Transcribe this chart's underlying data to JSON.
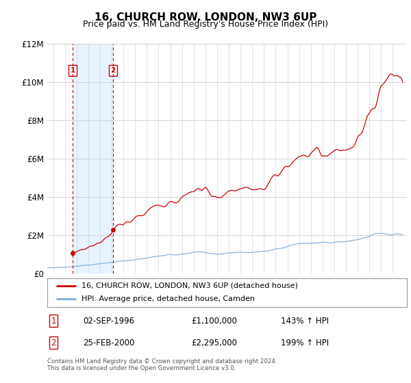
{
  "title": "16, CHURCH ROW, LONDON, NW3 6UP",
  "subtitle": "Price paid vs. HM Land Registry's House Price Index (HPI)",
  "ylim": [
    0,
    12000000
  ],
  "yticks": [
    0,
    2000000,
    4000000,
    6000000,
    8000000,
    10000000,
    12000000
  ],
  "ytick_labels": [
    "£0",
    "£2M",
    "£4M",
    "£6M",
    "£8M",
    "£10M",
    "£12M"
  ],
  "sale1_year": 1996.67,
  "sale1_price": 1100000,
  "sale2_year": 2000.12,
  "sale2_price": 2295000,
  "sale1_date": "02-SEP-1996",
  "sale1_price_str": "£1,100,000",
  "sale1_hpi_str": "143% ↑ HPI",
  "sale2_date": "25-FEB-2000",
  "sale2_price_str": "£2,295,000",
  "sale2_hpi_str": "199% ↑ HPI",
  "line1_color": "#cc0000",
  "line2_color": "#7aacdc",
  "shade_color": "#ddeeff",
  "legend1": "16, CHURCH ROW, LONDON, NW3 6UP (detached house)",
  "legend2": "HPI: Average price, detached house, Camden",
  "footer": "Contains HM Land Registry data © Crown copyright and database right 2024.\nThis data is licensed under the Open Government Licence v3.0.",
  "title_fontsize": 11,
  "subtitle_fontsize": 9,
  "background_color": "#ffffff",
  "xlim_min": 1994.5,
  "xlim_max": 2025.2
}
